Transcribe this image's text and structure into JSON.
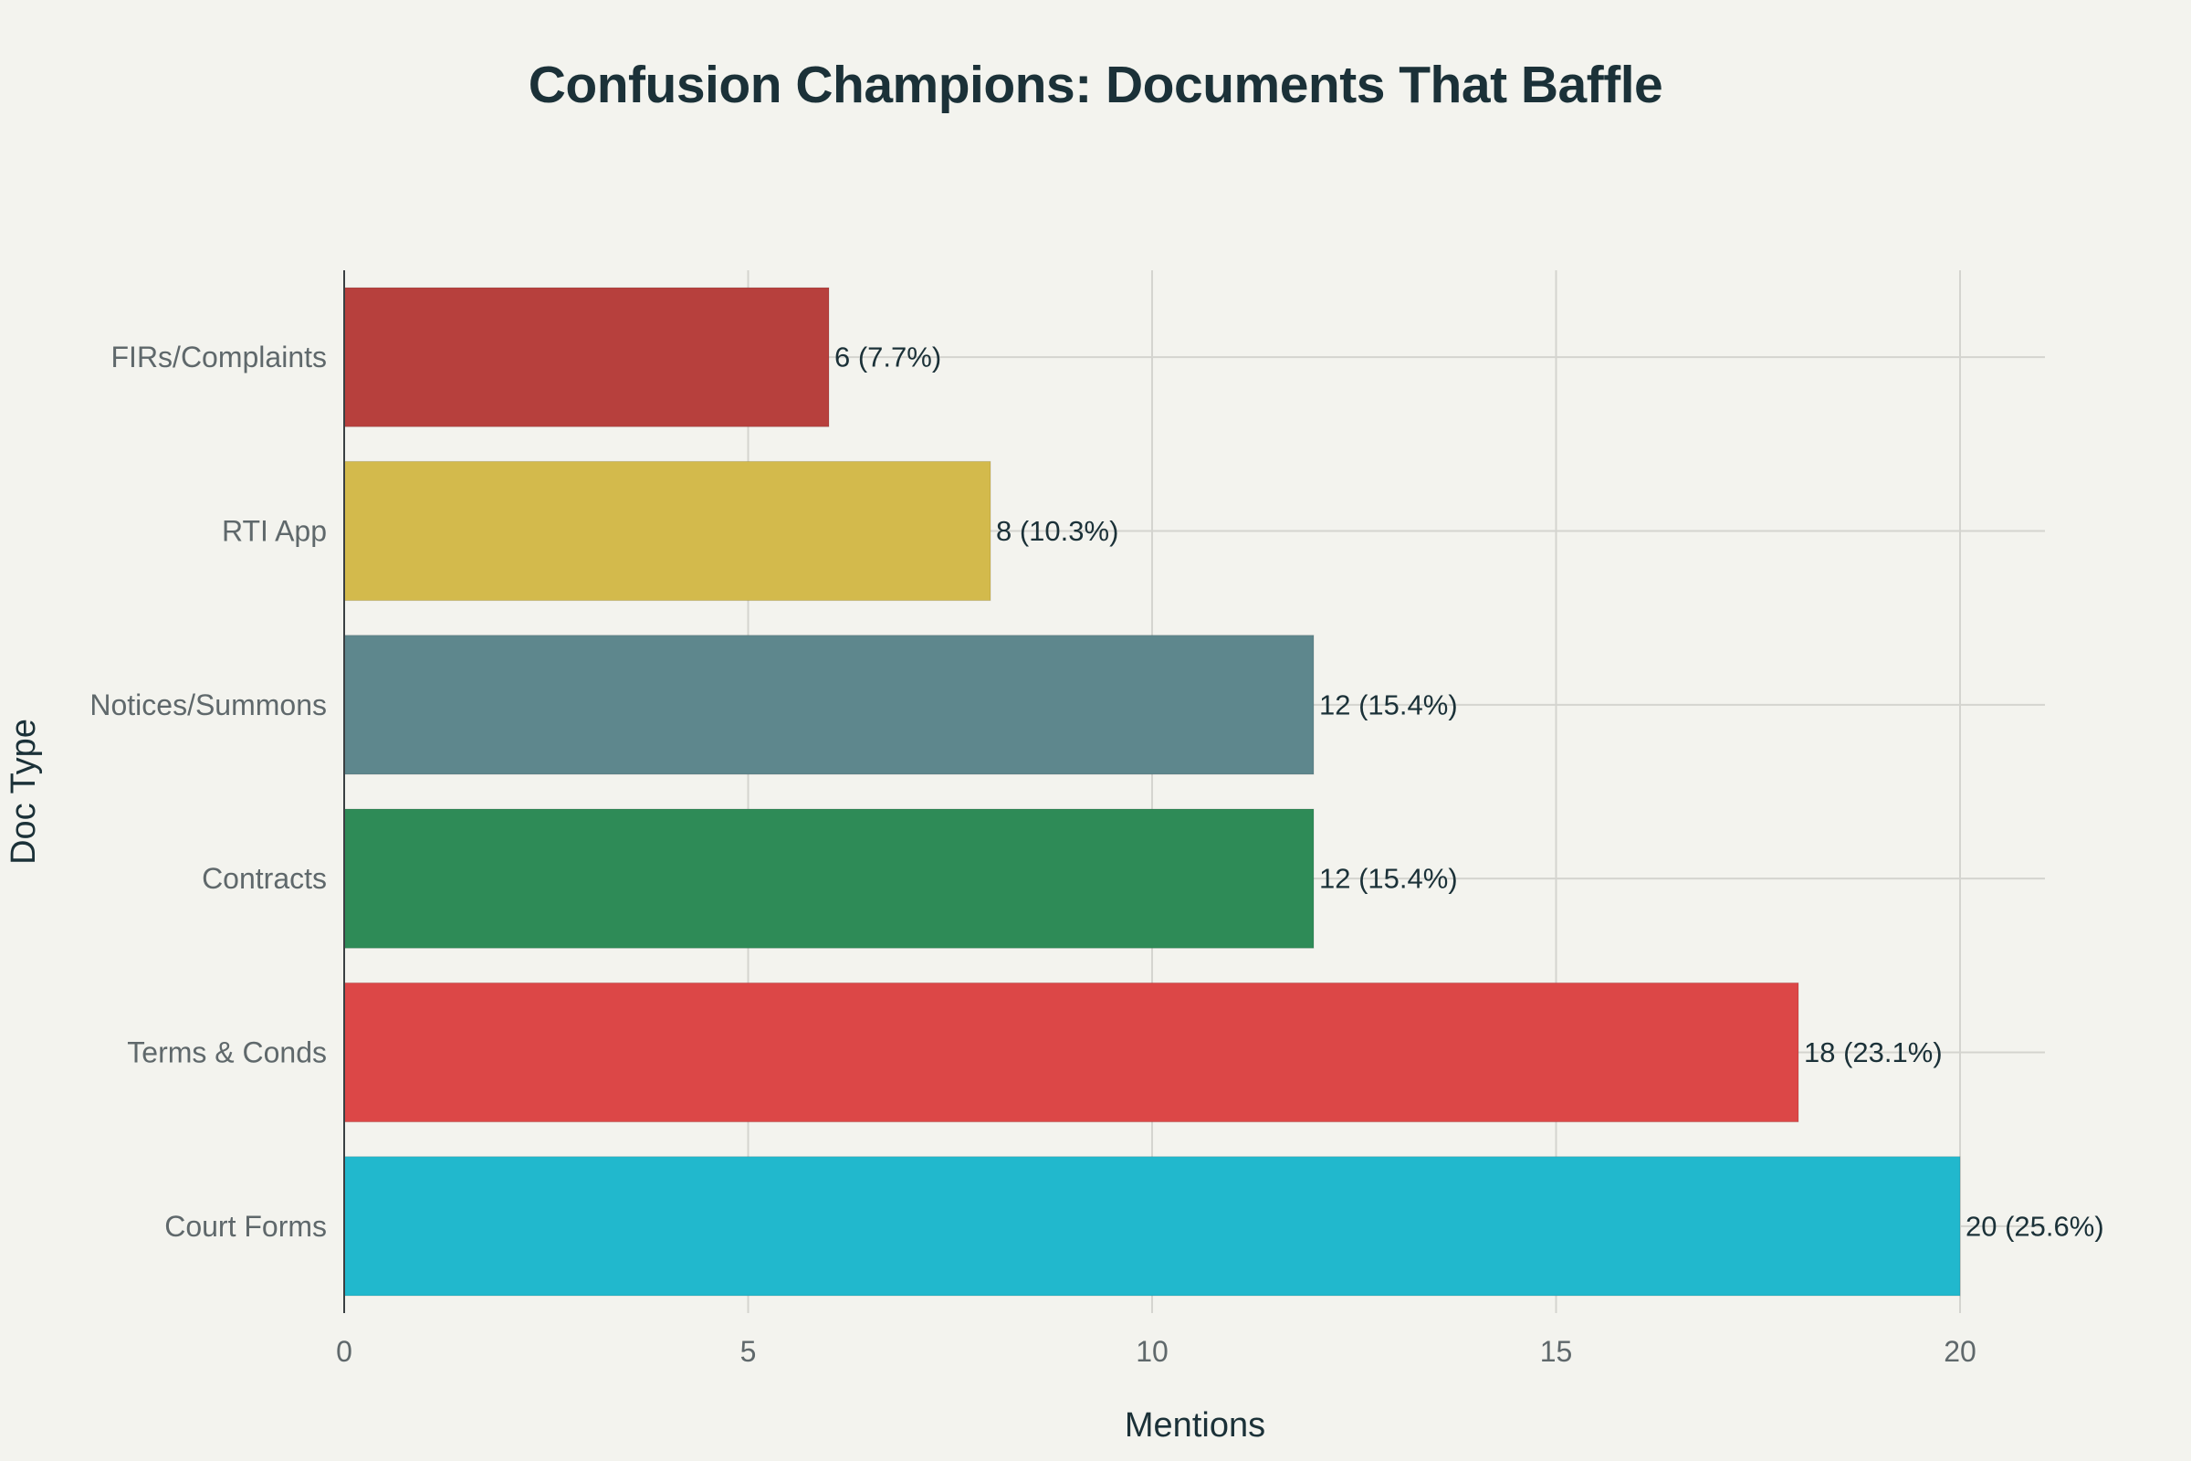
{
  "chart_data": {
    "type": "bar",
    "orientation": "horizontal",
    "title": "Confusion Champions: Documents That Baffle",
    "xlabel": "Mentions",
    "ylabel": "Doc Type",
    "xlim": [
      0,
      21
    ],
    "xticks": [
      0,
      5,
      10,
      15,
      20
    ],
    "grid": true,
    "categories": [
      "Court Forms",
      "Terms & Conds",
      "Contracts",
      "Notices/Summons",
      "RTI App",
      "FIRs/Complaints"
    ],
    "values": [
      20,
      18,
      12,
      12,
      8,
      6
    ],
    "data_labels": [
      "20 (25.6%)",
      "18 (23.1%)",
      "12 (15.4%)",
      "12 (15.4%)",
      "8 (10.3%)",
      "6 (7.7%)"
    ],
    "colors": [
      "#21b8cd",
      "#dc4747",
      "#2e8b57",
      "#5e878d",
      "#d3ba4c",
      "#b7403d"
    ]
  }
}
